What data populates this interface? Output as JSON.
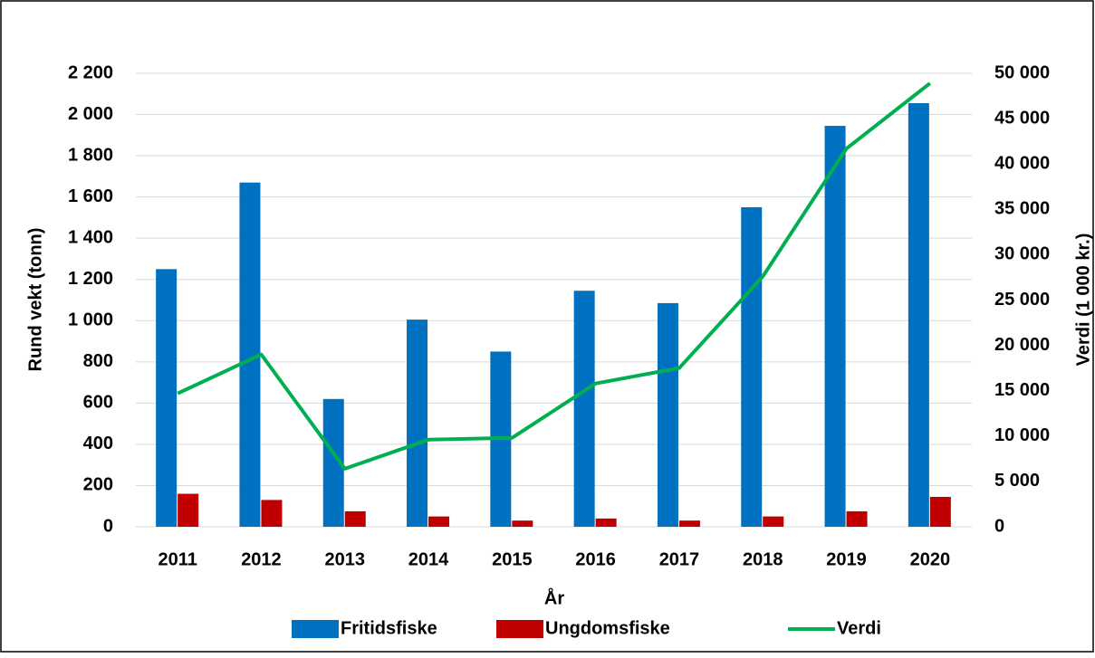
{
  "chart_data": {
    "type": "bar",
    "x_label": "År",
    "y_label": "Rund vekt (tonn)",
    "y2_label": "Verdi (1 000 kr.)",
    "categories": [
      "2011",
      "2012",
      "2013",
      "2014",
      "2015",
      "2016",
      "2017",
      "2018",
      "2019",
      "2020"
    ],
    "series": [
      {
        "name": "Fritidsfiske",
        "type": "bar",
        "color": "#0070c0",
        "values": [
          1250,
          1670,
          620,
          1005,
          850,
          1145,
          1085,
          1550,
          1945,
          2055
        ]
      },
      {
        "name": "Ungdomsfiske",
        "type": "bar",
        "color": "#c00000",
        "values": [
          160,
          130,
          75,
          50,
          30,
          40,
          30,
          50,
          75,
          145
        ]
      },
      {
        "name": "Verdi",
        "type": "line",
        "axis": "y2",
        "color": "#00b050",
        "values": [
          14700,
          19000,
          6400,
          9600,
          9800,
          15800,
          17500,
          27600,
          41700,
          48900
        ]
      }
    ],
    "ylim": [
      0,
      2200
    ],
    "yticks": [
      0,
      {
        "value": 200,
        "label": "200"
      },
      {
        "value": 400,
        "label": "400"
      },
      {
        "value": 600,
        "label": "600"
      },
      {
        "value": 800,
        "label": "800"
      },
      {
        "value": 1000,
        "label": "1 000"
      },
      {
        "value": 1200,
        "label": "1 200"
      },
      {
        "value": 1400,
        "label": "1 400"
      },
      {
        "value": 1600,
        "label": "1 600"
      },
      {
        "value": 1800,
        "label": "1 800"
      },
      {
        "value": 2000,
        "label": "2 000"
      },
      {
        "value": 2200,
        "label": "2 200"
      }
    ],
    "y2lim": [
      0,
      50000
    ],
    "y2ticks": [
      0,
      {
        "value": 5000,
        "label": "5 000"
      },
      {
        "value": 10000,
        "label": "10 000"
      },
      {
        "value": 15000,
        "label": "15 000"
      },
      {
        "value": 20000,
        "label": "20 000"
      },
      {
        "value": 25000,
        "label": "25 000"
      },
      {
        "value": 30000,
        "label": "30 000"
      },
      {
        "value": 35000,
        "label": "35 000"
      },
      {
        "value": 40000,
        "label": "40 000"
      },
      {
        "value": 45000,
        "label": "45 000"
      },
      {
        "value": 50000,
        "label": "50 000"
      }
    ],
    "grid": true,
    "legend": "bottom"
  }
}
